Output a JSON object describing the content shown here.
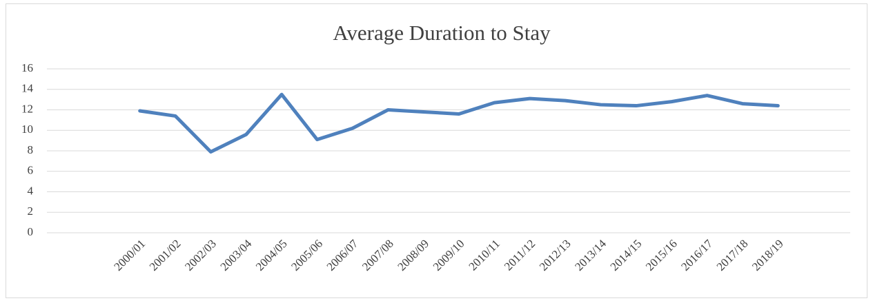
{
  "chart_data": {
    "type": "line",
    "title": "Average Duration to Stay",
    "categories": [
      "2000/01",
      "2001/02",
      "2002/03",
      "2003/04",
      "2004/05",
      "2005/06",
      "2006/07",
      "2007/08",
      "2008/09",
      "2009/10",
      "2010/11",
      "2011/12",
      "2012/13",
      "2013/14",
      "2014/15",
      "2015/16",
      "2016/17",
      "2017/18",
      "2018/19"
    ],
    "series": [
      {
        "name": "Average Duration to Stay",
        "color": "#4f81bd",
        "values": [
          11.9,
          11.4,
          7.9,
          9.6,
          13.5,
          9.1,
          10.2,
          12.0,
          11.8,
          11.6,
          12.7,
          13.1,
          12.9,
          12.5,
          12.4,
          12.8,
          13.4,
          12.6,
          12.4
        ]
      }
    ],
    "ylim": [
      0,
      16
    ],
    "yticks": [
      0,
      2,
      4,
      6,
      8,
      10,
      12,
      14,
      16
    ],
    "grid": true
  }
}
